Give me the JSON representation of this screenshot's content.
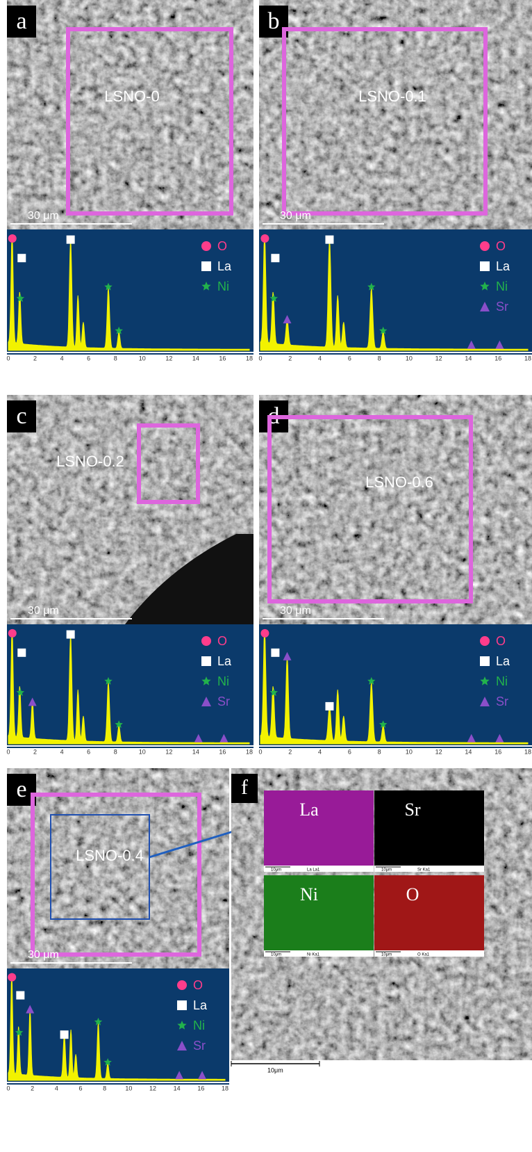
{
  "panels": [
    {
      "letter": "a",
      "sample": "LSNO-0",
      "scale_bar": "30 μm",
      "legend": [
        "O",
        "La",
        "Ni"
      ]
    },
    {
      "letter": "b",
      "sample": "LSNO-0.1",
      "scale_bar": "30 μm",
      "legend": [
        "O",
        "La",
        "Ni",
        "Sr"
      ]
    },
    {
      "letter": "c",
      "sample": "LSNO-0.2",
      "scale_bar": "30 μm",
      "legend": [
        "O",
        "La",
        "Ni",
        "Sr"
      ]
    },
    {
      "letter": "d",
      "sample": "LSNO-0.6",
      "scale_bar": "30 μm",
      "legend": [
        "O",
        "La",
        "Ni",
        "Sr"
      ]
    },
    {
      "letter": "e",
      "sample": "LSNO-0.4",
      "scale_bar": "30 μm",
      "legend": [
        "O",
        "La",
        "Ni",
        "Sr"
      ]
    }
  ],
  "spectrum_ticks": [
    0,
    2,
    4,
    6,
    8,
    10,
    12,
    14,
    16,
    18
  ],
  "mapping": {
    "letter": "f",
    "maps": [
      {
        "element": "La",
        "scale": "10μm",
        "caption": "La La1"
      },
      {
        "element": "Sr",
        "scale": "10μm",
        "caption": "Sr Ka1"
      },
      {
        "element": "Ni",
        "scale": "10μm",
        "caption": "Ni Ka1"
      },
      {
        "element": "O",
        "scale": "10μm",
        "caption": "O Ka1"
      }
    ],
    "scale_bar": "10μm"
  }
}
